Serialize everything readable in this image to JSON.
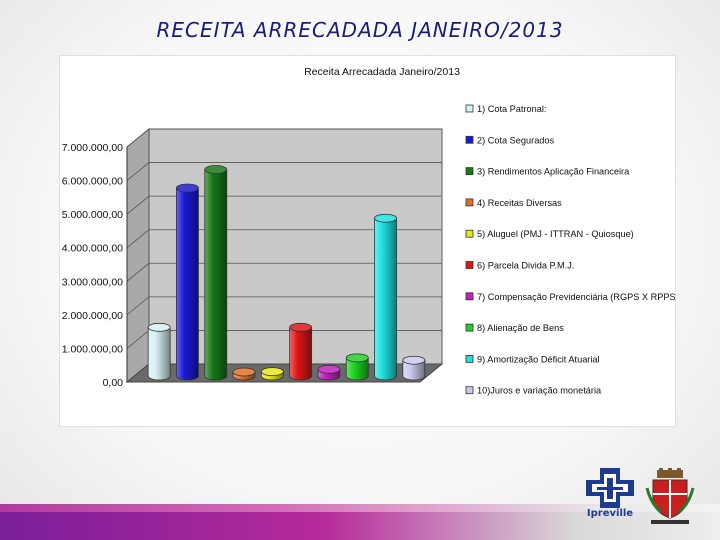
{
  "slide": {
    "title": "RECEITA ARRECADADA JANEIRO/2013",
    "logo_text": "Ipreville"
  },
  "chart_data": {
    "type": "bar",
    "title": "Receita Arrecadada Janeiro/2013",
    "y_ticks": [
      "0,00",
      "1.000.000,00",
      "2.000.000,00",
      "3.000.000,00",
      "4.000.000,00",
      "5.000.000,00",
      "6.000.000,00",
      "7.000.000,00"
    ],
    "ylim": [
      0,
      7000000
    ],
    "three_d": true,
    "legend_position": "right",
    "series": [
      {
        "name": "1) Cota Patronal:",
        "value": 1450000,
        "color": "#d7f0f3"
      },
      {
        "name": "2) Cota Segurados",
        "value": 5600000,
        "color": "#1a1ad6"
      },
      {
        "name": "3) Rendimentos Aplicação Financeira",
        "value": 6150000,
        "color": "#177a17"
      },
      {
        "name": "4) Receitas Diversas",
        "value": 120000,
        "color": "#e0702a"
      },
      {
        "name": "5) Aluguel (PMJ - ITTRAN - Quiosque)",
        "value": 130000,
        "color": "#e6e61c"
      },
      {
        "name": "6) Parcela Divida P.M.J.",
        "value": 1450000,
        "color": "#e01515"
      },
      {
        "name": "7) Compensação Previdenciária (RGPS X RPPS)",
        "value": 200000,
        "color": "#c21fc2"
      },
      {
        "name": "8) Alienação de Bens",
        "value": 540000,
        "color": "#1fd21f"
      },
      {
        "name": "9) Amortização Déficit Atuarial",
        "value": 4700000,
        "color": "#1fe0e0"
      },
      {
        "name": "10)Juros e variação monetária",
        "value": 470000,
        "color": "#c9c9ee"
      }
    ]
  }
}
